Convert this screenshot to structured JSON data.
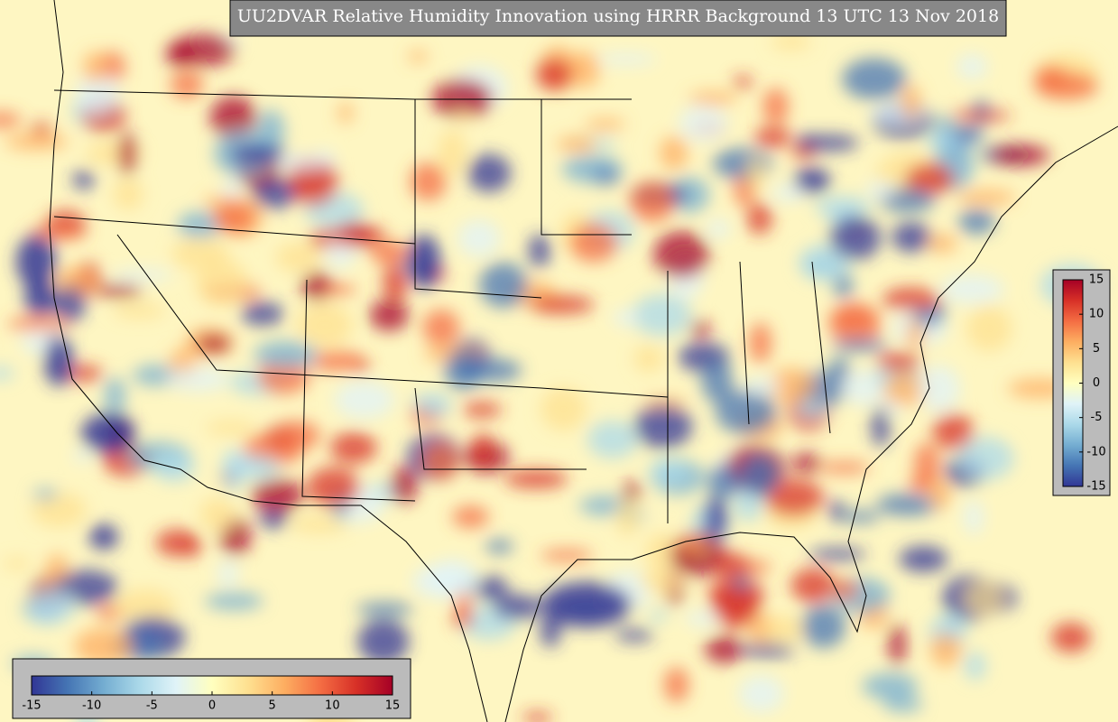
{
  "title": "UU2DVAR Relative Humidity Innovation using HRRR Background 13 UTC 13 Nov 2018",
  "colorbar_horizontal": {
    "lim": [
      -15,
      15
    ],
    "ticks": [
      -15,
      -10,
      -5,
      0,
      5,
      10,
      15
    ]
  },
  "colorbar_vertical": {
    "lim": [
      -15,
      15
    ],
    "ticks": [
      -15,
      -10,
      -5,
      0,
      5,
      10,
      15
    ]
  }
}
